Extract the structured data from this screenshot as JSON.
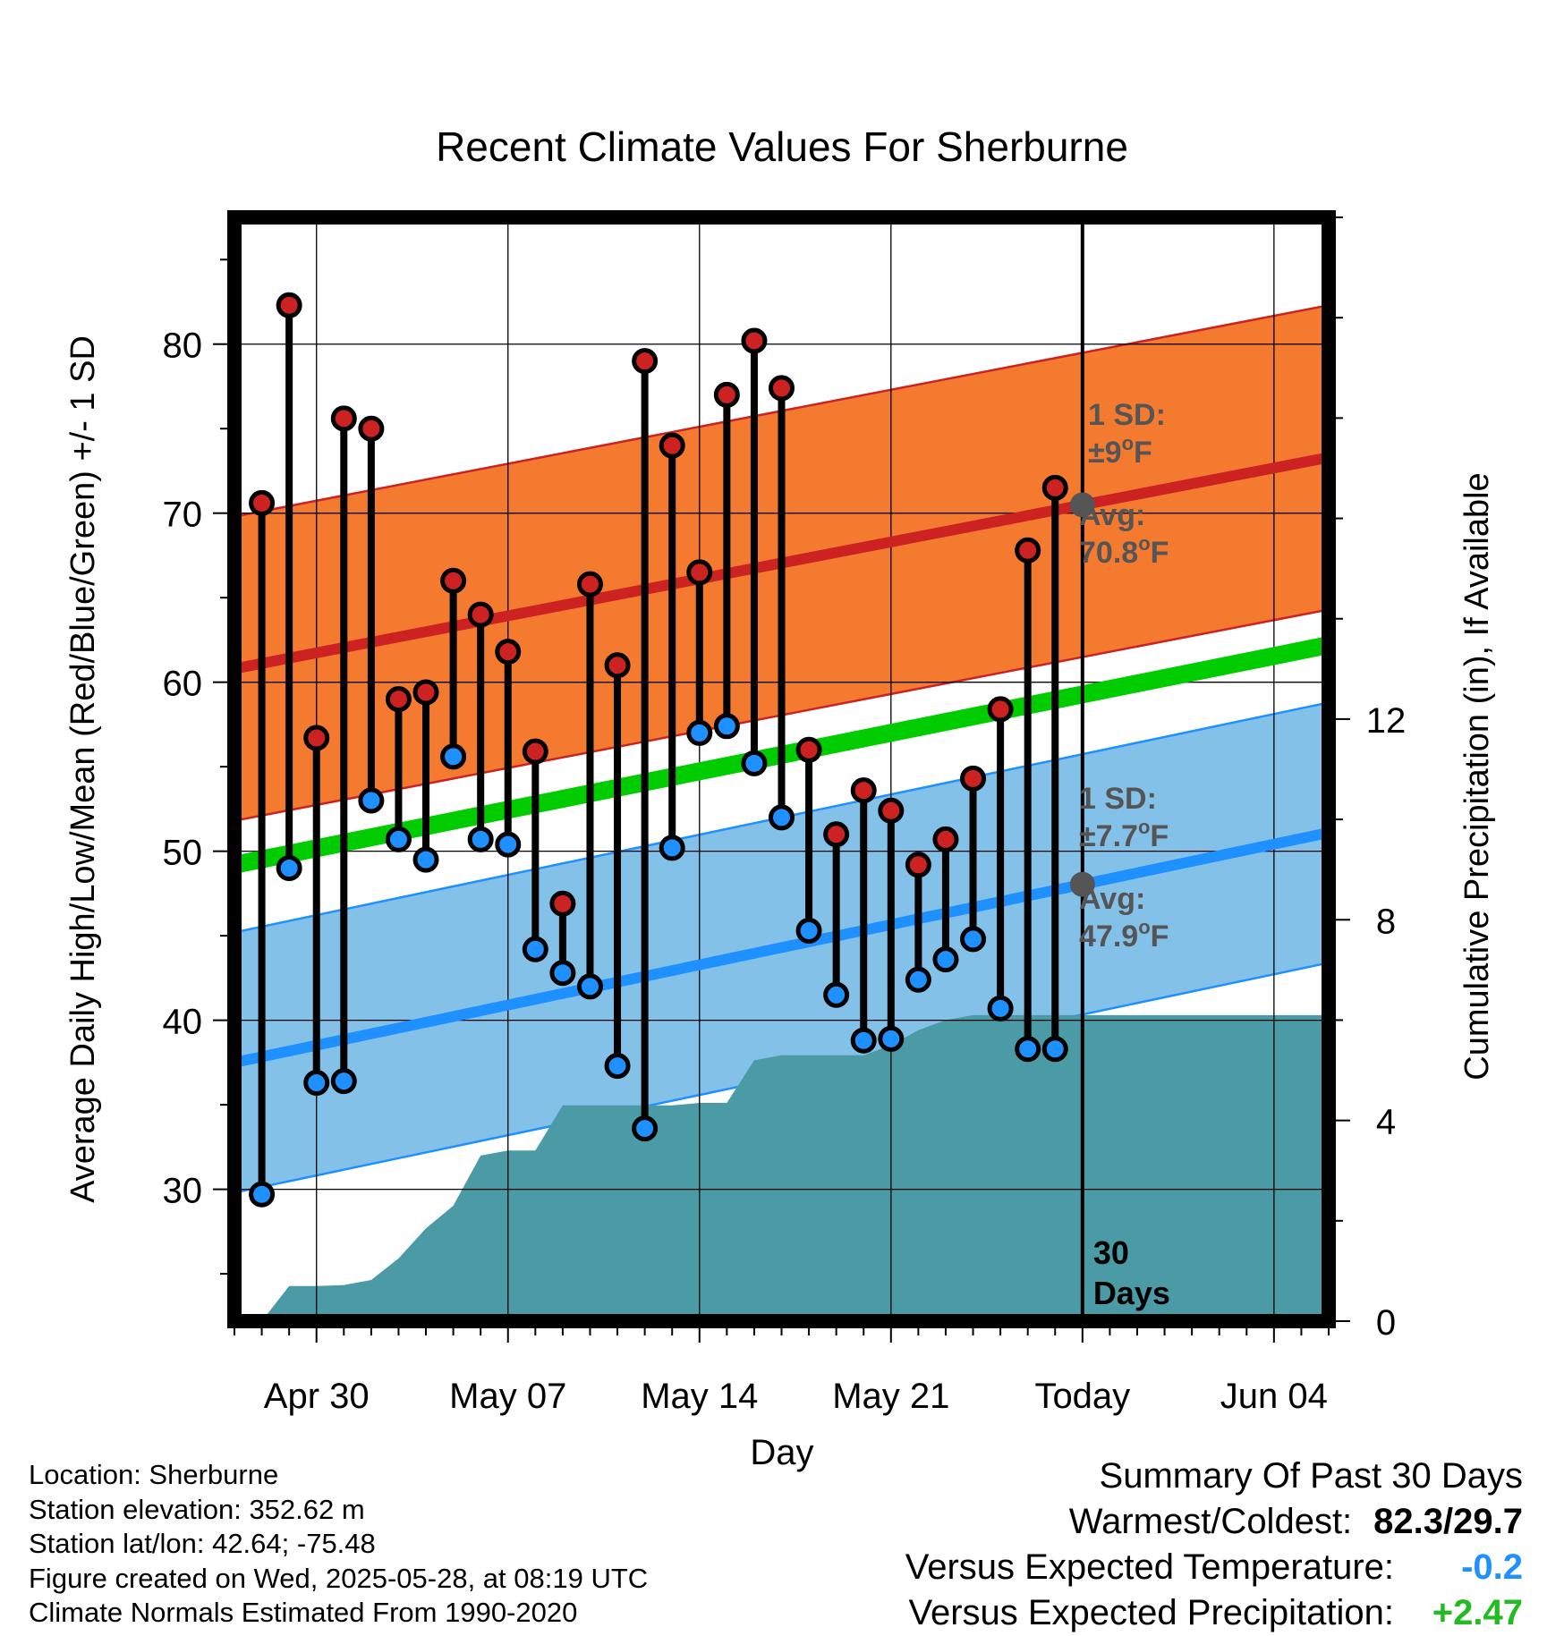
{
  "chart_data": {
    "type": "line",
    "title": "Recent Climate Values For Sherburne",
    "xlabel": "Day",
    "ylabel": "Average Daily High/Low/Mean (Red/Blue/Green) +/- 1 SD",
    "y2label": "Cumulative Precipitation (in), If Available",
    "xlim": [
      "2025-04-27",
      "2025-06-06"
    ],
    "ylim": [
      22.2,
      87.5
    ],
    "y2lim": [
      0,
      22
    ],
    "x_tick_labels": [
      "Apr 30",
      "May 07",
      "May 14",
      "May 21",
      "Today",
      "Jun 04"
    ],
    "x_tick_dates": [
      "2025-04-30",
      "2025-05-07",
      "2025-05-14",
      "2025-05-21",
      "2025-05-28",
      "2025-06-04"
    ],
    "y_ticks": [
      30,
      40,
      50,
      60,
      70,
      80
    ],
    "y2_ticks": [
      0,
      4,
      8,
      12
    ],
    "grid": true,
    "today": "2025-05-28",
    "today_label": [
      "30",
      "Days"
    ],
    "dates": [
      "2025-04-28",
      "2025-04-29",
      "2025-04-30",
      "2025-05-01",
      "2025-05-02",
      "2025-05-03",
      "2025-05-04",
      "2025-05-05",
      "2025-05-06",
      "2025-05-07",
      "2025-05-08",
      "2025-05-09",
      "2025-05-10",
      "2025-05-11",
      "2025-05-12",
      "2025-05-13",
      "2025-05-14",
      "2025-05-15",
      "2025-05-16",
      "2025-05-17",
      "2025-05-18",
      "2025-05-19",
      "2025-05-20",
      "2025-05-21",
      "2025-05-22",
      "2025-05-23",
      "2025-05-24",
      "2025-05-25",
      "2025-05-26",
      "2025-05-27"
    ],
    "series": [
      {
        "name": "High",
        "values": [
          70.6,
          82.3,
          56.7,
          75.6,
          75.0,
          59.0,
          59.4,
          66.0,
          64.0,
          61.8,
          55.9,
          46.9,
          65.8,
          61.0,
          79.0,
          74.0,
          66.5,
          77.0,
          80.2,
          77.4,
          56.0,
          51.0,
          53.6,
          52.4,
          49.2,
          50.7,
          54.3,
          58.4,
          67.8,
          71.5
        ],
        "color": "#cc2222"
      },
      {
        "name": "Low",
        "values": [
          29.7,
          49.0,
          36.3,
          36.4,
          53.0,
          50.7,
          49.5,
          55.6,
          50.7,
          50.4,
          44.2,
          42.8,
          42.0,
          37.3,
          33.6,
          50.2,
          57.0,
          57.4,
          55.2,
          52.0,
          45.3,
          41.5,
          38.8,
          38.9,
          42.4,
          43.6,
          44.8,
          40.7,
          38.3,
          38.3
        ],
        "color": "#1e90ff"
      }
    ],
    "normal_high": {
      "start": 60.8,
      "end": 73.3,
      "sd": 9,
      "color": "#cc2222",
      "band_color": "#f47a30"
    },
    "normal_low": {
      "start": 37.5,
      "end": 51.1,
      "sd": 7.7,
      "color": "#1e90ff",
      "band_color": "#83c1e8"
    },
    "normal_mean": {
      "start": 49.2,
      "end": 62.2,
      "color": "#00cc00"
    },
    "precip_cumulative": {
      "x": [
        "2025-04-27",
        "2025-04-28",
        "2025-04-29",
        "2025-04-30",
        "2025-05-01",
        "2025-05-02",
        "2025-05-03",
        "2025-05-04",
        "2025-05-05",
        "2025-05-06",
        "2025-05-07",
        "2025-05-08",
        "2025-05-09",
        "2025-05-10",
        "2025-05-11",
        "2025-05-12",
        "2025-05-13",
        "2025-05-14",
        "2025-05-15",
        "2025-05-16",
        "2025-05-17",
        "2025-05-18",
        "2025-05-19",
        "2025-05-20",
        "2025-05-21",
        "2025-05-22",
        "2025-05-23",
        "2025-05-24",
        "2025-05-25",
        "2025-05-26",
        "2025-06-06"
      ],
      "values": [
        0,
        0,
        0.7,
        0.7,
        0.72,
        0.82,
        1.25,
        1.85,
        2.3,
        3.3,
        3.4,
        3.4,
        4.3,
        4.3,
        4.3,
        4.3,
        4.3,
        4.35,
        4.35,
        5.2,
        5.3,
        5.3,
        5.3,
        5.3,
        5.5,
        5.8,
        6.0,
        6.1,
        6.1,
        6.1,
        6.1
      ],
      "color": "#4a9ba5"
    },
    "annotations": {
      "high_sd": [
        "1 SD:",
        "±9",
        "o",
        "F"
      ],
      "high_avg": [
        "Avg:",
        "70.8",
        "o",
        "F"
      ],
      "low_sd": [
        "1 SD:",
        "±7.7",
        "o",
        "F"
      ],
      "low_avg": [
        "Avg:",
        "47.9",
        "o",
        "F"
      ],
      "color": "#555555"
    }
  },
  "info": {
    "location": "Location: Sherburne",
    "elevation": "Station elevation: 352.62 m",
    "latlon": "Station lat/lon: 42.64; -75.48",
    "created": "Figure created on Wed, 2025-05-28, at 08:19 UTC",
    "normals": "Climate Normals Estimated From 1990-2020"
  },
  "summary": {
    "title": "Summary Of Past 30 Days",
    "warm_cold_label": "Warmest/Coldest:",
    "warm_cold_value": "82.3/29.7",
    "temp_label": "Versus Expected Temperature:",
    "temp_value": "-0.2",
    "precip_label": "Versus Expected Precipitation:",
    "precip_value": "+2.47"
  }
}
